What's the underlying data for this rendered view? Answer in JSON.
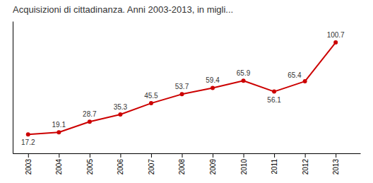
{
  "chart_data": {
    "type": "line",
    "title": "Acquisizioni di cittadinanza.  Anni 2003-2013, in migli...",
    "x": [
      2003,
      2004,
      2005,
      2006,
      2007,
      2008,
      2009,
      2010,
      2011,
      2012,
      2013
    ],
    "values": [
      17.2,
      19.1,
      28.7,
      35.3,
      45.5,
      53.7,
      59.4,
      65.9,
      56.1,
      65.4,
      100.7
    ],
    "color": "#cc0000",
    "marker": "circle",
    "xlim": [
      2002.5,
      2013.8
    ],
    "xticks": [
      2003,
      2004,
      2005,
      2006,
      2007,
      2008,
      2009,
      2010,
      2011,
      2012,
      2013
    ],
    "ylim": [
      0,
      120
    ],
    "grid": false,
    "data_labels": true,
    "tick_labels": "x"
  }
}
